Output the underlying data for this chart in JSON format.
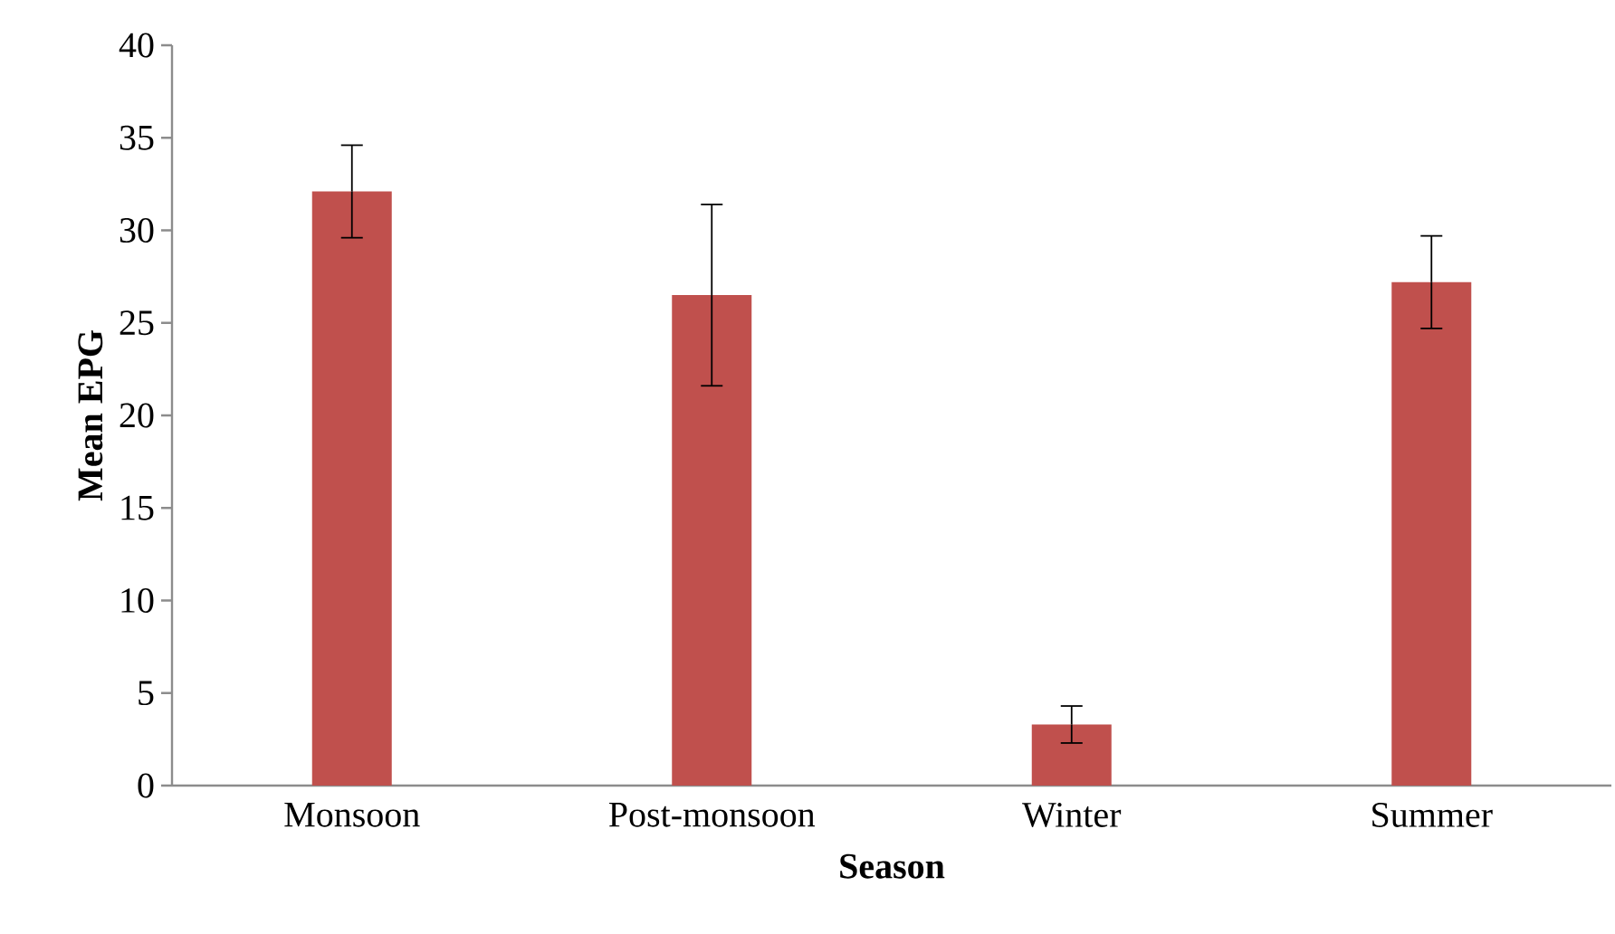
{
  "chart_data": {
    "type": "bar",
    "xlabel": "Season",
    "ylabel": "Mean EPG",
    "categories": [
      "Monsoon",
      "Post-monsoon",
      "Winter",
      "Summer"
    ],
    "values": [
      32.1,
      26.5,
      3.3,
      27.2
    ],
    "errors": [
      2.5,
      4.9,
      1.0,
      2.5
    ],
    "color": "#c0504d",
    "ylim": [
      0,
      40
    ],
    "yticks": [
      0,
      5,
      10,
      15,
      20,
      25,
      30,
      35,
      40
    ]
  }
}
